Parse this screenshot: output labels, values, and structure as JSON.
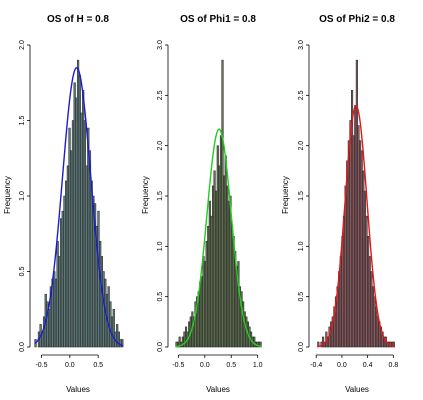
{
  "chart_data": [
    {
      "type": "bar",
      "title": "OS of H = 0.8",
      "xlabel": "Values",
      "ylabel": "Frequency",
      "xlim": [
        -0.65,
        0.92
      ],
      "ylim": [
        0,
        2.0
      ],
      "xticks": [
        -0.5,
        0.0,
        0.5
      ],
      "yticks": [
        "0.0",
        "0.5",
        "1.0",
        "1.5",
        "2.0"
      ],
      "bin_start": -0.62,
      "bin_width": 0.03,
      "values": [
        0.05,
        0.0,
        0.1,
        0.15,
        0.1,
        0.2,
        0.35,
        0.3,
        0.25,
        0.4,
        0.45,
        0.5,
        0.45,
        0.7,
        0.6,
        0.85,
        0.9,
        1.0,
        1.1,
        1.2,
        1.45,
        1.3,
        1.5,
        1.75,
        1.65,
        1.9,
        1.8,
        1.55,
        1.7,
        1.5,
        1.2,
        1.45,
        1.3,
        1.1,
        1.0,
        0.95,
        0.8,
        0.9,
        0.7,
        0.6,
        0.5,
        0.45,
        0.35,
        0.4,
        0.3,
        0.2,
        0.25,
        0.1,
        0.15,
        0.1,
        0.05,
        0.05
      ],
      "density": {
        "mean": 0.12,
        "sd": 0.25,
        "color": "#1c1cd0"
      },
      "bar_color": "#5f7a7a"
    },
    {
      "type": "bar",
      "title": "OS of Phi1 = 0.8",
      "xlabel": "Values",
      "ylabel": "Frequency",
      "xlim": [
        -0.62,
        1.1
      ],
      "ylim": [
        0,
        3.0
      ],
      "xticks": [
        -0.5,
        0.0,
        0.5,
        1.0
      ],
      "yticks": [
        "0.0",
        "0.5",
        "1.0",
        "1.5",
        "2.0",
        "2.5",
        "3.0"
      ],
      "bin_start": -0.55,
      "bin_width": 0.03,
      "values": [
        0.05,
        0.05,
        0.1,
        0.05,
        0.1,
        0.15,
        0.2,
        0.15,
        0.25,
        0.3,
        0.35,
        0.3,
        0.45,
        0.5,
        0.55,
        0.65,
        0.7,
        0.9,
        0.85,
        1.05,
        1.2,
        1.45,
        1.3,
        1.6,
        1.75,
        1.55,
        2.0,
        1.8,
        2.1,
        2.85,
        1.7,
        1.9,
        1.6,
        1.45,
        1.5,
        1.2,
        1.1,
        0.95,
        0.8,
        0.85,
        0.6,
        0.55,
        0.45,
        0.35,
        0.3,
        0.25,
        0.2,
        0.15,
        0.1,
        0.1,
        0.05,
        0.05,
        0.05,
        0.05
      ],
      "density": {
        "mean": 0.27,
        "sd": 0.23,
        "color": "#22cc22"
      },
      "bar_color": "#5f7050"
    },
    {
      "type": "bar",
      "title": "OS of Phi2 = 0.8",
      "xlabel": "Values",
      "ylabel": "Frequency",
      "xlim": [
        -0.45,
        0.95
      ],
      "ylim": [
        0,
        3.0
      ],
      "xticks": [
        -0.4,
        0.0,
        0.4,
        0.8
      ],
      "yticks": [
        "0.0",
        "0.5",
        "1.0",
        "1.5",
        "2.0",
        "2.5",
        "3.0"
      ],
      "bin_start": -0.38,
      "bin_width": 0.025,
      "values": [
        0.05,
        0.0,
        0.05,
        0.1,
        0.05,
        0.15,
        0.1,
        0.2,
        0.25,
        0.3,
        0.4,
        0.5,
        0.6,
        0.75,
        0.9,
        1.1,
        1.3,
        1.6,
        1.85,
        2.05,
        2.25,
        2.55,
        2.1,
        2.4,
        2.85,
        2.2,
        2.05,
        1.95,
        1.75,
        1.55,
        1.3,
        1.1,
        0.9,
        0.75,
        0.6,
        0.5,
        0.4,
        0.3,
        0.25,
        0.2,
        0.15,
        0.1,
        0.1,
        0.05,
        0.05,
        0.05,
        0.05,
        0.05
      ],
      "density": {
        "mean": 0.22,
        "sd": 0.17,
        "color": "#e01818"
      },
      "bar_color": "#8a5a60"
    }
  ]
}
